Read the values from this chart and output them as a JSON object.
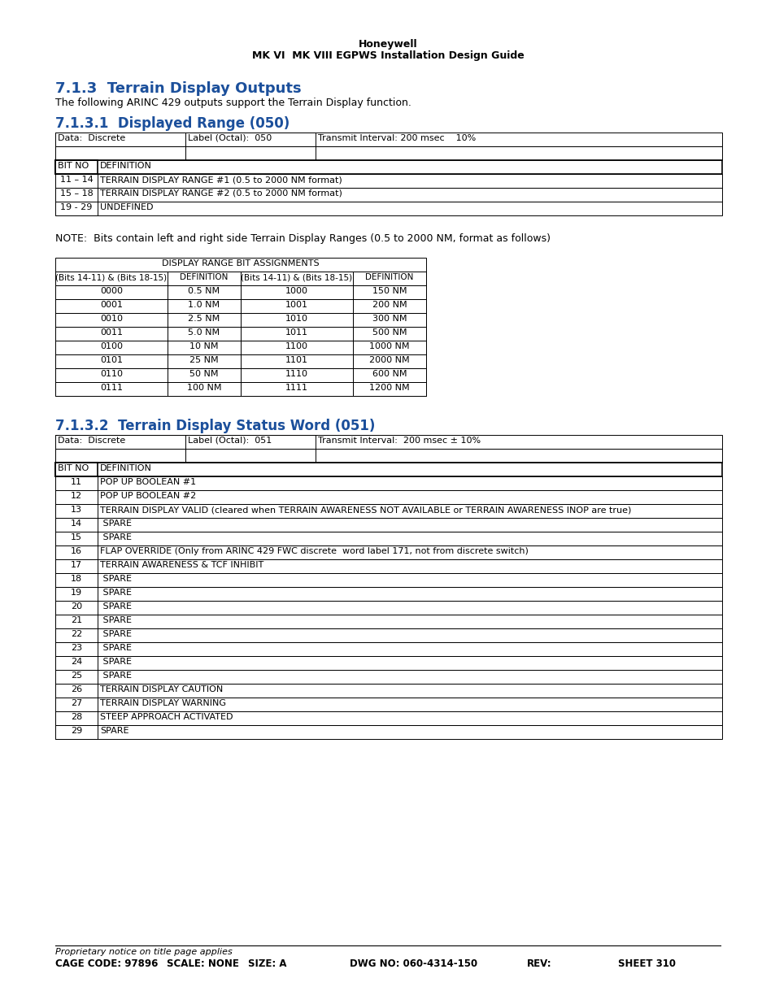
{
  "page_title_line1": "Honeywell",
  "page_title_line2": "MK VI  MK VIII EGPWS Installation Design Guide",
  "section_title": "7.1.3  Terrain Display Outputs",
  "section_text": "The following ARINC 429 outputs support the Terrain Display function.",
  "subsection1_title": "7.1.3.1  Displayed Range (050)",
  "subsection2_title": "7.1.3.2  Terrain Display Status Word (051)",
  "table1_header": [
    "Data:  Discrete",
    "Label (Octal):  050",
    "Transmit Interval: 200 msec    10%"
  ],
  "table1_rows": [
    [
      "BIT NO",
      "DEFINITION"
    ],
    [
      "11 – 14",
      "TERRAIN DISPLAY RANGE #1 (0.5 to 2000 NM format)"
    ],
    [
      "15 – 18",
      "TERRAIN DISPLAY RANGE #2 (0.5 to 2000 NM format)"
    ],
    [
      "19 - 29",
      "UNDEFINED"
    ]
  ],
  "note_text": "NOTE:  Bits contain left and right side Terrain Display Ranges (0.5 to 2000 NM, format as follows)",
  "range_table_title": "DISPLAY RANGE BIT ASSIGNMENTS",
  "range_table_header": [
    "(Bits 14-11) & (Bits 18-15)",
    "DEFINITION",
    "(Bits 14-11) & (Bits 18-15)",
    "DEFINITION"
  ],
  "range_table_rows": [
    [
      "0000",
      "0.5 NM",
      "1000",
      "150 NM"
    ],
    [
      "0001",
      "1.0 NM",
      "1001",
      "200 NM"
    ],
    [
      "0010",
      "2.5 NM",
      "1010",
      "300 NM"
    ],
    [
      "0011",
      "5.0 NM",
      "1011",
      "500 NM"
    ],
    [
      "0100",
      "10 NM",
      "1100",
      "1000 NM"
    ],
    [
      "0101",
      "25 NM",
      "1101",
      "2000 NM"
    ],
    [
      "0110",
      "50 NM",
      "1110",
      "600 NM"
    ],
    [
      "0111",
      "100 NM",
      "1111",
      "1200 NM"
    ]
  ],
  "table2_header": [
    "Data:  Discrete",
    "Label (Octal):  051",
    "Transmit Interval:  200 msec ± 10%"
  ],
  "table2_rows": [
    [
      "BIT NO",
      "DEFINITION"
    ],
    [
      "11",
      "POP UP BOOLEAN #1"
    ],
    [
      "12",
      "POP UP BOOLEAN #2"
    ],
    [
      "13",
      "TERRAIN DISPLAY VALID (cleared when TERRAIN AWARENESS NOT AVAILABLE or TERRAIN AWARENESS INOP are true)"
    ],
    [
      "14",
      " SPARE"
    ],
    [
      "15",
      " SPARE"
    ],
    [
      "16",
      "FLAP OVERRIDE (Only from ARINC 429 FWC discrete  word label 171, not from discrete switch)"
    ],
    [
      "17",
      "TERRAIN AWARENESS & TCF INHIBIT"
    ],
    [
      "18",
      " SPARE"
    ],
    [
      "19",
      " SPARE"
    ],
    [
      "20",
      " SPARE"
    ],
    [
      "21",
      " SPARE"
    ],
    [
      "22",
      " SPARE"
    ],
    [
      "23",
      " SPARE"
    ],
    [
      "24",
      " SPARE"
    ],
    [
      "25",
      " SPARE"
    ],
    [
      "26",
      "TERRAIN DISPLAY CAUTION"
    ],
    [
      "27",
      "TERRAIN DISPLAY WARNING"
    ],
    [
      "28",
      "STEEP APPROACH ACTIVATED"
    ],
    [
      "29",
      "SPARE"
    ]
  ],
  "footer_text": "Proprietary notice on title page applies",
  "footer_cage": "CAGE CODE: 97896",
  "footer_scale": "SCALE: NONE",
  "footer_size": "SIZE: A",
  "footer_dwg": "DWG NO: 060-4314-150",
  "footer_rev": "REV:",
  "footer_sheet": "SHEET 310",
  "blue_color": "#1B4F9B",
  "black": "#000000",
  "white": "#FFFFFF"
}
